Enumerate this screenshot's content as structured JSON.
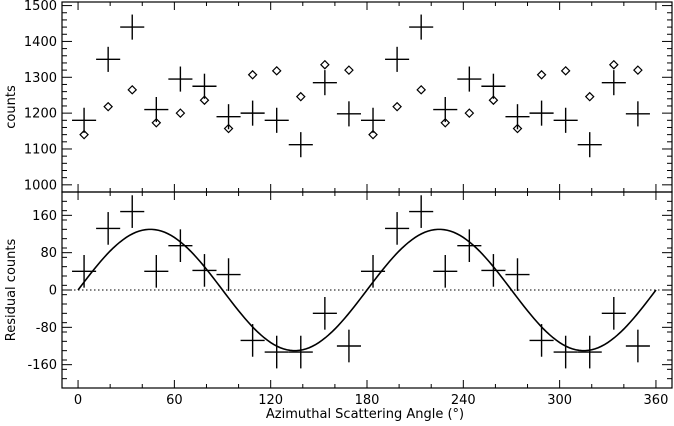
{
  "chart_data": [
    {
      "type": "scatter",
      "panel": "top",
      "ylabel": "counts",
      "xlim": [
        -10,
        370
      ],
      "ylim": [
        980,
        1510
      ],
      "x_ticks": [
        0,
        60,
        120,
        180,
        240,
        300,
        360
      ],
      "y_ticks": [
        1000,
        1100,
        1200,
        1300,
        1400,
        1500
      ],
      "y_tick_labels": [
        "1000",
        "1100",
        "1200",
        "1300",
        "1400",
        "1500"
      ],
      "series": [
        {
          "marker": "cross-errorbar",
          "x": [
            3.75,
            18.75,
            33.75,
            48.75,
            63.75,
            78.75,
            93.75,
            108.75,
            123.75,
            138.75,
            153.75,
            168.75,
            183.75,
            198.75,
            213.75,
            228.75,
            243.75,
            258.75,
            273.75,
            288.75,
            303.75,
            318.75,
            333.75,
            348.75
          ],
          "y": [
            1180,
            1350,
            1440,
            1210,
            1295,
            1275,
            1190,
            1200,
            1180,
            1112,
            1285,
            1198,
            1180,
            1350,
            1440,
            1210,
            1295,
            1275,
            1190,
            1200,
            1180,
            1112,
            1285,
            1198
          ],
          "x_err": 7.5,
          "y_err": 35
        },
        {
          "marker": "diamond",
          "x": [
            3.75,
            18.75,
            33.75,
            48.75,
            63.75,
            78.75,
            93.75,
            108.75,
            123.75,
            138.75,
            153.75,
            168.75,
            183.75,
            198.75,
            213.75,
            228.75,
            243.75,
            258.75,
            273.75,
            288.75,
            303.75,
            318.75,
            333.75,
            348.75
          ],
          "y": [
            1140,
            1218,
            1265,
            1173,
            1200,
            1236,
            1157,
            1307,
            1318,
            1246,
            1335,
            1320,
            1140,
            1218,
            1265,
            1173,
            1200,
            1236,
            1157,
            1307,
            1318,
            1246,
            1335,
            1320
          ]
        }
      ]
    },
    {
      "type": "scatter",
      "panel": "bottom",
      "xlabel": "Azimuthal Scattering Angle (°)",
      "ylabel": "Residual counts",
      "xlim": [
        -10,
        370
      ],
      "ylim": [
        -210,
        210
      ],
      "x_ticks": [
        0,
        60,
        120,
        180,
        240,
        300,
        360
      ],
      "x_tick_labels": [
        "0",
        "60",
        "120",
        "180",
        "240",
        "300",
        "360"
      ],
      "y_ticks": [
        -160,
        -80,
        0,
        80,
        160
      ],
      "y_tick_labels": [
        "-160",
        "-80",
        "0",
        "80",
        "160"
      ],
      "zero_line": "dotted",
      "series": [
        {
          "marker": "cross-errorbar",
          "x": [
            3.75,
            18.75,
            33.75,
            48.75,
            63.75,
            78.75,
            93.75,
            108.75,
            123.75,
            138.75,
            153.75,
            168.75,
            183.75,
            198.75,
            213.75,
            228.75,
            243.75,
            258.75,
            273.75,
            288.75,
            303.75,
            318.75,
            333.75,
            348.75
          ],
          "y": [
            40,
            132,
            168,
            40,
            95,
            42,
            33,
            -108,
            -133,
            -133,
            -50,
            -120,
            40,
            132,
            168,
            40,
            95,
            42,
            33,
            -108,
            -133,
            -133,
            -50,
            -120
          ],
          "x_err": 7.5,
          "y_err": 35
        },
        {
          "type": "line",
          "function": "sine",
          "amplitude": 130,
          "period_deg": 180,
          "phase_deg": 45,
          "x_range": [
            0,
            360
          ]
        }
      ]
    }
  ]
}
